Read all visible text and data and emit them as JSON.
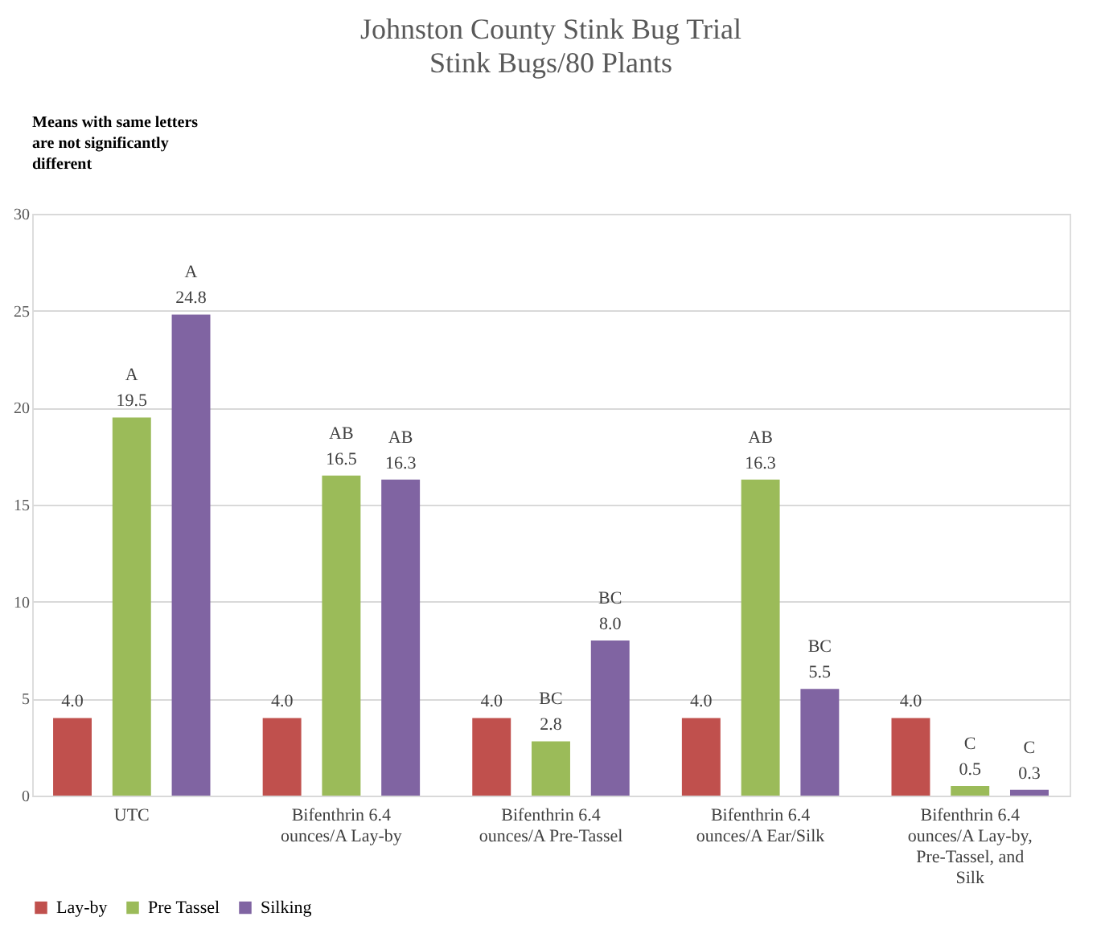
{
  "chart_data": {
    "type": "bar",
    "title": "Johnston County Stink Bug Trial",
    "subtitle": "Stink Bugs/80 Plants",
    "categories": [
      "UTC",
      "Bifenthrin 6.4 ounces/A Lay-by",
      "Bifenthrin 6.4 ounces/A Pre-Tassel",
      "Bifenthrin 6.4 ounces/A Ear/Silk",
      "Bifenthrin 6.4 ounces/A Lay-by, Pre-Tassel, and Silk"
    ],
    "series": [
      {
        "name": "Lay-by",
        "color": "#c0504d",
        "values": [
          4.0,
          4.0,
          4.0,
          4.0,
          4.0
        ],
        "value_labels": [
          "4.0",
          "4.0",
          "4.0",
          "4.0",
          "4.0"
        ]
      },
      {
        "name": "Pre Tassel",
        "color": "#9bbb59",
        "values": [
          19.5,
          16.5,
          2.8,
          16.3,
          0.5
        ],
        "value_labels": [
          "A\n19.5",
          "AB\n16.5",
          "BC\n2.8",
          "AB\n16.3",
          "C\n0.5"
        ]
      },
      {
        "name": "Silking",
        "color": "#8064a2",
        "values": [
          24.8,
          16.3,
          8.0,
          5.5,
          0.3
        ],
        "value_labels": [
          "A\n24.8",
          "AB\n16.3",
          "BC\n8.0",
          "BC\n5.5",
          "C\n0.3"
        ]
      }
    ],
    "ylim": [
      0,
      30
    ],
    "yticks": [
      0,
      5,
      10,
      15,
      20,
      25,
      30
    ],
    "grid": "y",
    "legend": "bottom",
    "annotations": [
      "Means with same letters are not significantly different"
    ]
  }
}
